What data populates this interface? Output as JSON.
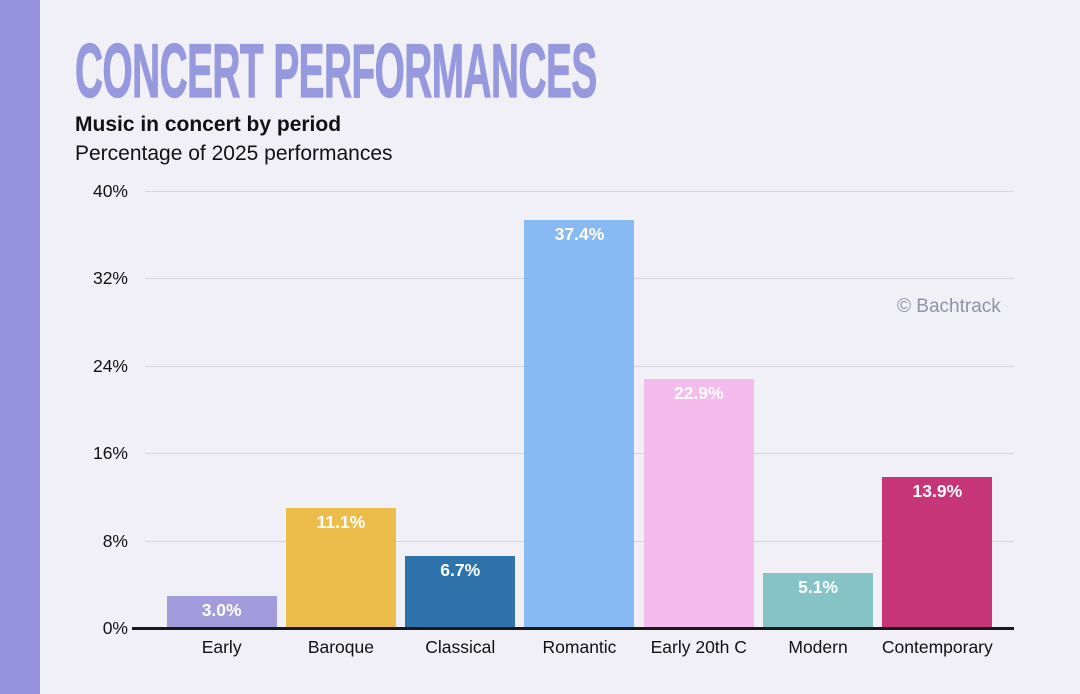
{
  "page": {
    "title": "CONCERT PERFORMANCES",
    "subtitle": "Music in concert by period",
    "subtitle2": "Percentage of 2025 performances",
    "watermark": "© Bachtrack",
    "background_color": "#F1F0F6",
    "accent_color": "#9492DC",
    "title_color": "#9799DE"
  },
  "chart_data": {
    "type": "bar",
    "title": "Music in concert by period",
    "subtitle": "Percentage of 2025 performances",
    "categories": [
      "Early",
      "Baroque",
      "Classical",
      "Romantic",
      "Early 20th C",
      "Modern",
      "Contemporary"
    ],
    "values": [
      3.0,
      11.1,
      6.7,
      37.4,
      22.9,
      5.1,
      13.9
    ],
    "value_labels": [
      "3.0%",
      "11.1%",
      "6.7%",
      "37.4%",
      "22.9%",
      "5.1%",
      "13.9%"
    ],
    "bar_colors": [
      "#A29BDC",
      "#ECBD4B",
      "#2E73AC",
      "#87B9F2",
      "#F4BCEC",
      "#85C3C6",
      "#C53577"
    ],
    "yticks": [
      "40%",
      "32%",
      "24%",
      "16%",
      "8%",
      "0%"
    ],
    "ytick_values": [
      40,
      32,
      24,
      16,
      8,
      0
    ],
    "ylim": [
      0,
      40
    ],
    "xlabel": "",
    "ylabel": "",
    "grid": true,
    "legend": false,
    "annotations": [
      "© Bachtrack"
    ]
  }
}
